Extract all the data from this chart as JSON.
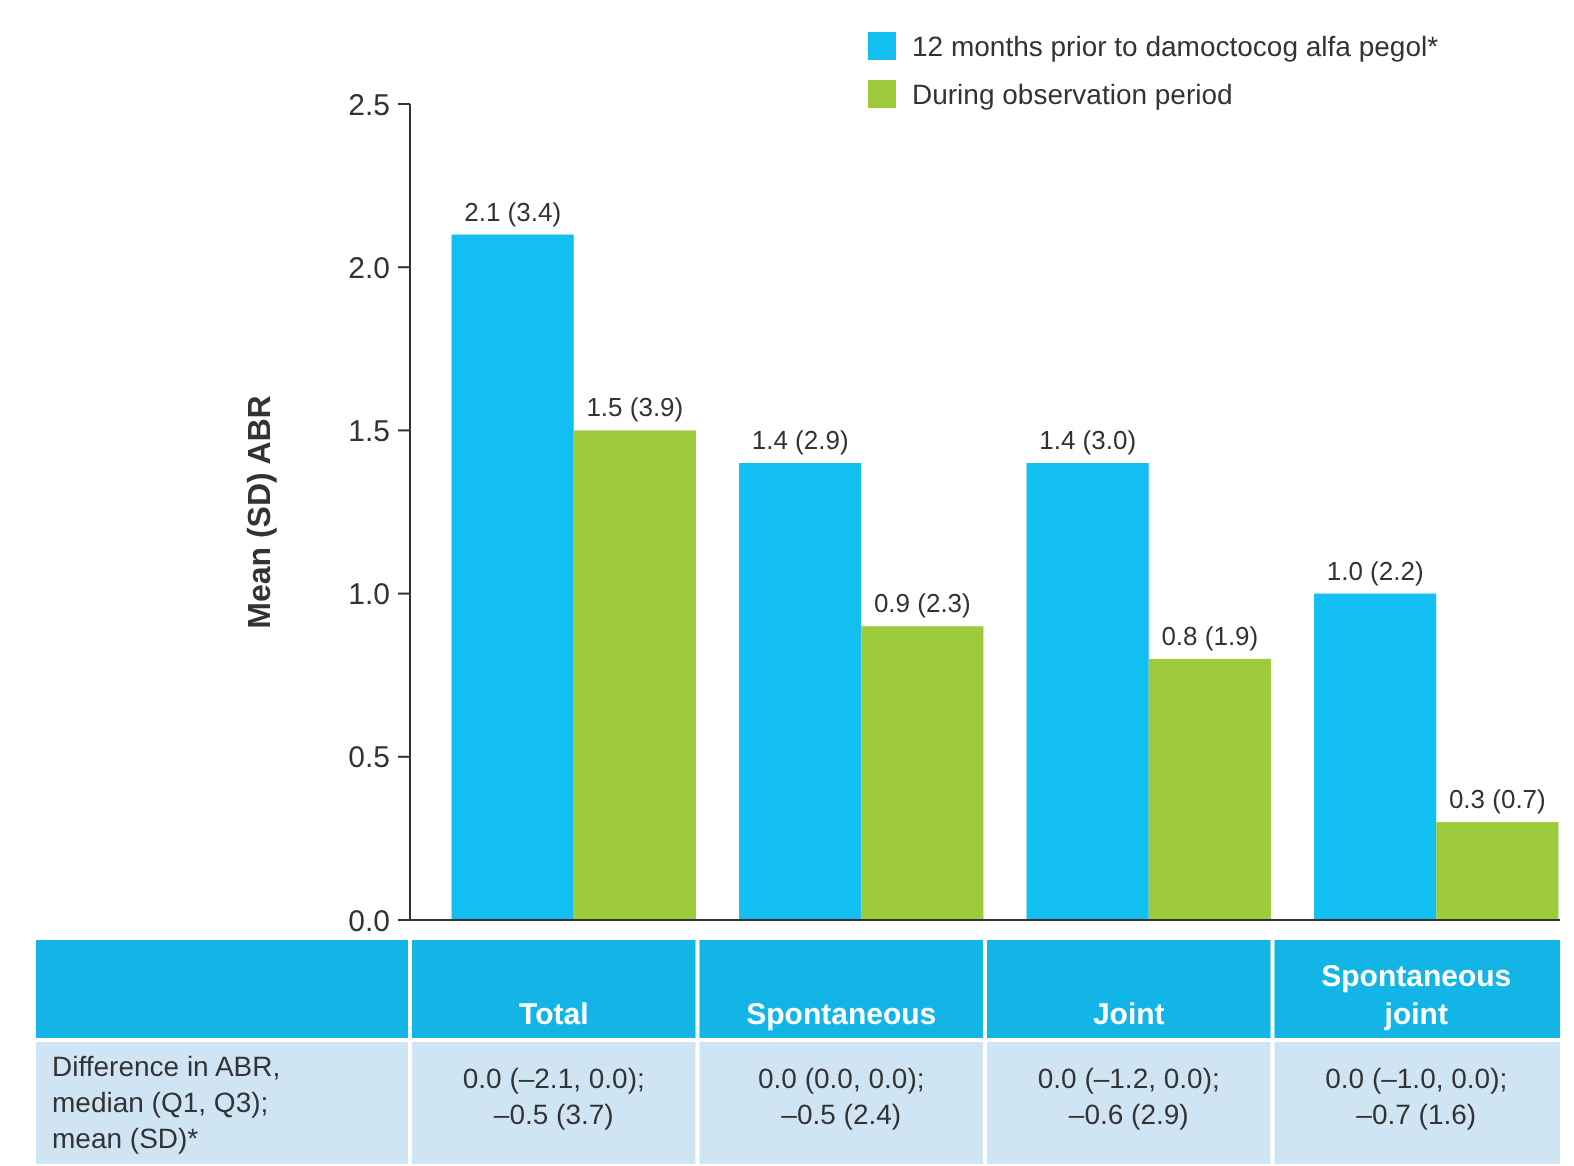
{
  "chart_data": {
    "type": "bar",
    "ylabel": "Mean (SD) ABR",
    "categories": [
      "Total",
      "Spontaneous",
      "Joint",
      "Spontaneous joint"
    ],
    "series": [
      {
        "name": "12 months prior to damoctocog alfa pegol*",
        "color": "#12bff0",
        "values": [
          2.1,
          1.4,
          1.4,
          1.0
        ],
        "value_labels": [
          "2.1 (3.4)",
          "1.4 (2.9)",
          "1.4 (3.0)",
          "1.0 (2.2)"
        ]
      },
      {
        "name": "During observation period",
        "color": "#9dcb3b",
        "values": [
          1.5,
          0.9,
          0.8,
          0.3
        ],
        "value_labels": [
          "1.5 (3.9)",
          "0.9 (2.3)",
          "0.8 (1.9)",
          "0.3 (0.7)"
        ]
      }
    ],
    "ylim": [
      0,
      2.5
    ],
    "yticks": [
      {
        "value": 0,
        "label": "0.0"
      },
      {
        "value": 0.5,
        "label": "0.5"
      },
      {
        "value": 1,
        "label": "1.0"
      },
      {
        "value": 1.5,
        "label": "1.5"
      },
      {
        "value": 2,
        "label": "2.0"
      },
      {
        "value": 2.5,
        "label": "2.5"
      }
    ],
    "grid": false,
    "legend": "top right",
    "annotations": [
      "Difference in ABR,\nmedian (Q1, Q3);\nmean (SD)*",
      "0.0 (–2.1, 0.0);\n–0.5 (3.7)",
      "0.0 (0.0, 0.0);\n–0.5 (2.4)",
      "0.0 (–1.2, 0.0);\n–0.6 (2.9)",
      "0.0 (–1.0, 0.0);\n–0.7 (1.6)"
    ]
  }
}
